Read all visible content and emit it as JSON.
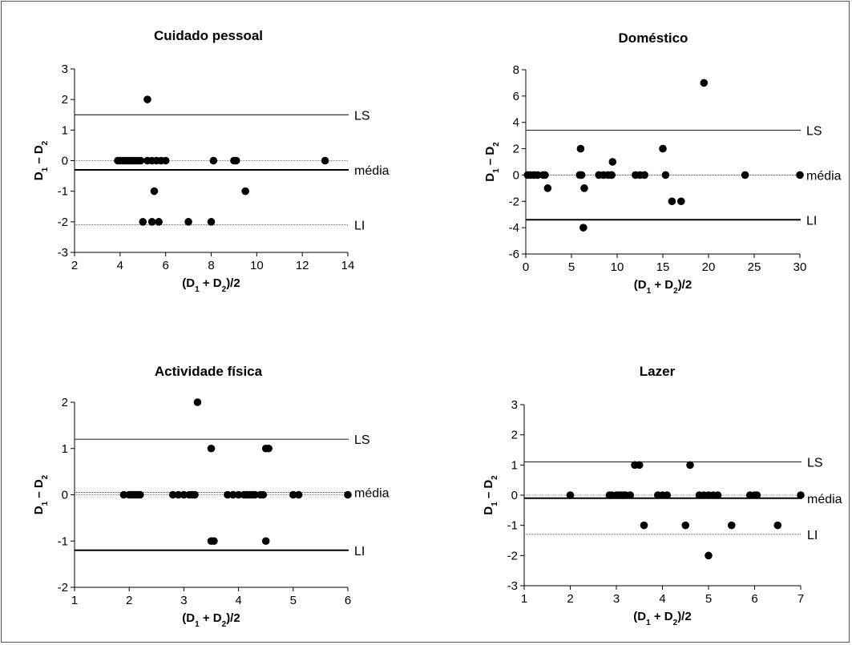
{
  "chart_data": [
    {
      "type": "scatter",
      "title": "Cuidado pessoal",
      "xlabel": "(D1 + D2)/2",
      "ylabel": "D1 – D2",
      "xlim": [
        2,
        14
      ],
      "ylim": [
        -3,
        3
      ],
      "xticks": [
        "2",
        "4",
        "6",
        "8",
        "10",
        "12",
        "14"
      ],
      "yticks": [
        "-3",
        "-2",
        "-1",
        "0",
        "1",
        "2",
        "3"
      ],
      "points": [
        [
          3.9,
          0
        ],
        [
          4.0,
          0
        ],
        [
          4.1,
          0
        ],
        [
          4.2,
          0
        ],
        [
          4.3,
          0
        ],
        [
          4.4,
          0
        ],
        [
          4.5,
          0
        ],
        [
          4.6,
          0
        ],
        [
          4.7,
          0
        ],
        [
          4.8,
          0
        ],
        [
          4.9,
          0
        ],
        [
          5.2,
          0
        ],
        [
          5.4,
          0
        ],
        [
          5.6,
          0
        ],
        [
          5.8,
          0
        ],
        [
          6.0,
          0
        ],
        [
          8.1,
          0
        ],
        [
          9.0,
          0
        ],
        [
          9.1,
          0
        ],
        [
          13.0,
          0
        ],
        [
          5.2,
          2
        ],
        [
          5.5,
          -1
        ],
        [
          9.5,
          -1
        ],
        [
          5.0,
          -2
        ],
        [
          5.4,
          -2
        ],
        [
          5.7,
          -2
        ],
        [
          7.0,
          -2
        ],
        [
          8.0,
          -2
        ]
      ],
      "lines": [
        {
          "label": "LS",
          "value": 1.5,
          "style": "thin"
        },
        {
          "label": "média",
          "value": -0.3,
          "style": "thick"
        },
        {
          "label": "LI",
          "value": -2.1,
          "style": "dotted"
        }
      ],
      "zero_line": true
    },
    {
      "type": "scatter",
      "title": "Doméstico",
      "xlabel": "(D1 + D2)/2",
      "ylabel": "D1 – D2",
      "xlim": [
        0,
        30
      ],
      "ylim": [
        -6,
        8
      ],
      "xticks": [
        "0",
        "5",
        "10",
        "15",
        "20",
        "25",
        "30"
      ],
      "yticks": [
        "-6",
        "-4",
        "-2",
        "0",
        "2",
        "4",
        "6",
        "8"
      ],
      "points": [
        [
          0.2,
          0
        ],
        [
          0.5,
          0
        ],
        [
          0.9,
          0
        ],
        [
          1.3,
          0
        ],
        [
          1.9,
          0
        ],
        [
          2.1,
          0
        ],
        [
          5.9,
          0
        ],
        [
          6.1,
          0
        ],
        [
          8.0,
          0
        ],
        [
          8.5,
          0
        ],
        [
          9.0,
          0
        ],
        [
          9.4,
          0
        ],
        [
          12.0,
          0
        ],
        [
          12.5,
          0
        ],
        [
          13.0,
          0
        ],
        [
          15.3,
          0
        ],
        [
          24.0,
          0
        ],
        [
          30.0,
          0
        ],
        [
          2.4,
          -1
        ],
        [
          6.0,
          2
        ],
        [
          6.4,
          -1
        ],
        [
          6.3,
          -4
        ],
        [
          9.5,
          1
        ],
        [
          15.0,
          2
        ],
        [
          16.0,
          -2
        ],
        [
          17.0,
          -2
        ],
        [
          19.5,
          7
        ]
      ],
      "lines": [
        {
          "label": "LS",
          "value": 3.4,
          "style": "thin"
        },
        {
          "label": "média",
          "value": 0,
          "style": "dotted"
        },
        {
          "label": "LI",
          "value": -3.4,
          "style": "thick"
        }
      ],
      "zero_line": false
    },
    {
      "type": "scatter",
      "title": "Actividade física",
      "xlabel": "(D1 + D2)/2",
      "ylabel": "D1 – D2",
      "xlim": [
        1,
        6
      ],
      "ylim": [
        -2,
        2
      ],
      "xticks": [
        "1",
        "2",
        "3",
        "4",
        "5",
        "6"
      ],
      "yticks": [
        "-2",
        "-1",
        "0",
        "1",
        "2"
      ],
      "points": [
        [
          1.9,
          0
        ],
        [
          2.0,
          0
        ],
        [
          2.05,
          0
        ],
        [
          2.1,
          0
        ],
        [
          2.15,
          0
        ],
        [
          2.2,
          0
        ],
        [
          2.8,
          0
        ],
        [
          2.9,
          0
        ],
        [
          3.0,
          0
        ],
        [
          3.1,
          0
        ],
        [
          3.15,
          0
        ],
        [
          3.2,
          0
        ],
        [
          3.8,
          0
        ],
        [
          3.9,
          0
        ],
        [
          4.0,
          0
        ],
        [
          4.1,
          0
        ],
        [
          4.15,
          0
        ],
        [
          4.2,
          0
        ],
        [
          4.25,
          0
        ],
        [
          4.3,
          0
        ],
        [
          4.4,
          0
        ],
        [
          4.45,
          0
        ],
        [
          5.0,
          0
        ],
        [
          5.1,
          0
        ],
        [
          6.0,
          0
        ],
        [
          3.25,
          2
        ],
        [
          3.5,
          1
        ],
        [
          4.5,
          1
        ],
        [
          4.55,
          1
        ],
        [
          3.5,
          -1
        ],
        [
          3.55,
          -1
        ],
        [
          4.5,
          -1
        ]
      ],
      "lines": [
        {
          "label": "LS",
          "value": 1.2,
          "style": "thin"
        },
        {
          "label": "média",
          "value": 0.05,
          "style": "dotted"
        },
        {
          "label": "LI",
          "value": -1.2,
          "style": "thick"
        }
      ],
      "zero_line": true
    },
    {
      "type": "scatter",
      "title": "Lazer",
      "xlabel": "(D1 + D2)/2",
      "ylabel": "D1 – D2",
      "xlim": [
        1,
        7
      ],
      "ylim": [
        -3,
        3
      ],
      "xticks": [
        "1",
        "2",
        "3",
        "4",
        "5",
        "6",
        "7"
      ],
      "yticks": [
        "-3",
        "-2",
        "-1",
        "0",
        "1",
        "2",
        "3"
      ],
      "points": [
        [
          2.0,
          0
        ],
        [
          2.85,
          0
        ],
        [
          2.9,
          0
        ],
        [
          3.0,
          0
        ],
        [
          3.05,
          0
        ],
        [
          3.1,
          0
        ],
        [
          3.15,
          0
        ],
        [
          3.2,
          0
        ],
        [
          3.3,
          0
        ],
        [
          3.9,
          0
        ],
        [
          4.0,
          0
        ],
        [
          4.1,
          0
        ],
        [
          4.8,
          0
        ],
        [
          4.9,
          0
        ],
        [
          5.0,
          0
        ],
        [
          5.1,
          0
        ],
        [
          5.2,
          0
        ],
        [
          5.9,
          0
        ],
        [
          6.0,
          0
        ],
        [
          6.05,
          0
        ],
        [
          7.0,
          0
        ],
        [
          3.4,
          1
        ],
        [
          3.5,
          1
        ],
        [
          4.6,
          1
        ],
        [
          3.6,
          -1
        ],
        [
          4.5,
          -1
        ],
        [
          5.5,
          -1
        ],
        [
          6.5,
          -1
        ],
        [
          5.0,
          -2
        ]
      ],
      "lines": [
        {
          "label": "LS",
          "value": 1.1,
          "style": "thin"
        },
        {
          "label": "média",
          "value": -0.1,
          "style": "thick"
        },
        {
          "label": "LI",
          "value": -1.3,
          "style": "dotted"
        }
      ],
      "zero_line": true
    }
  ]
}
